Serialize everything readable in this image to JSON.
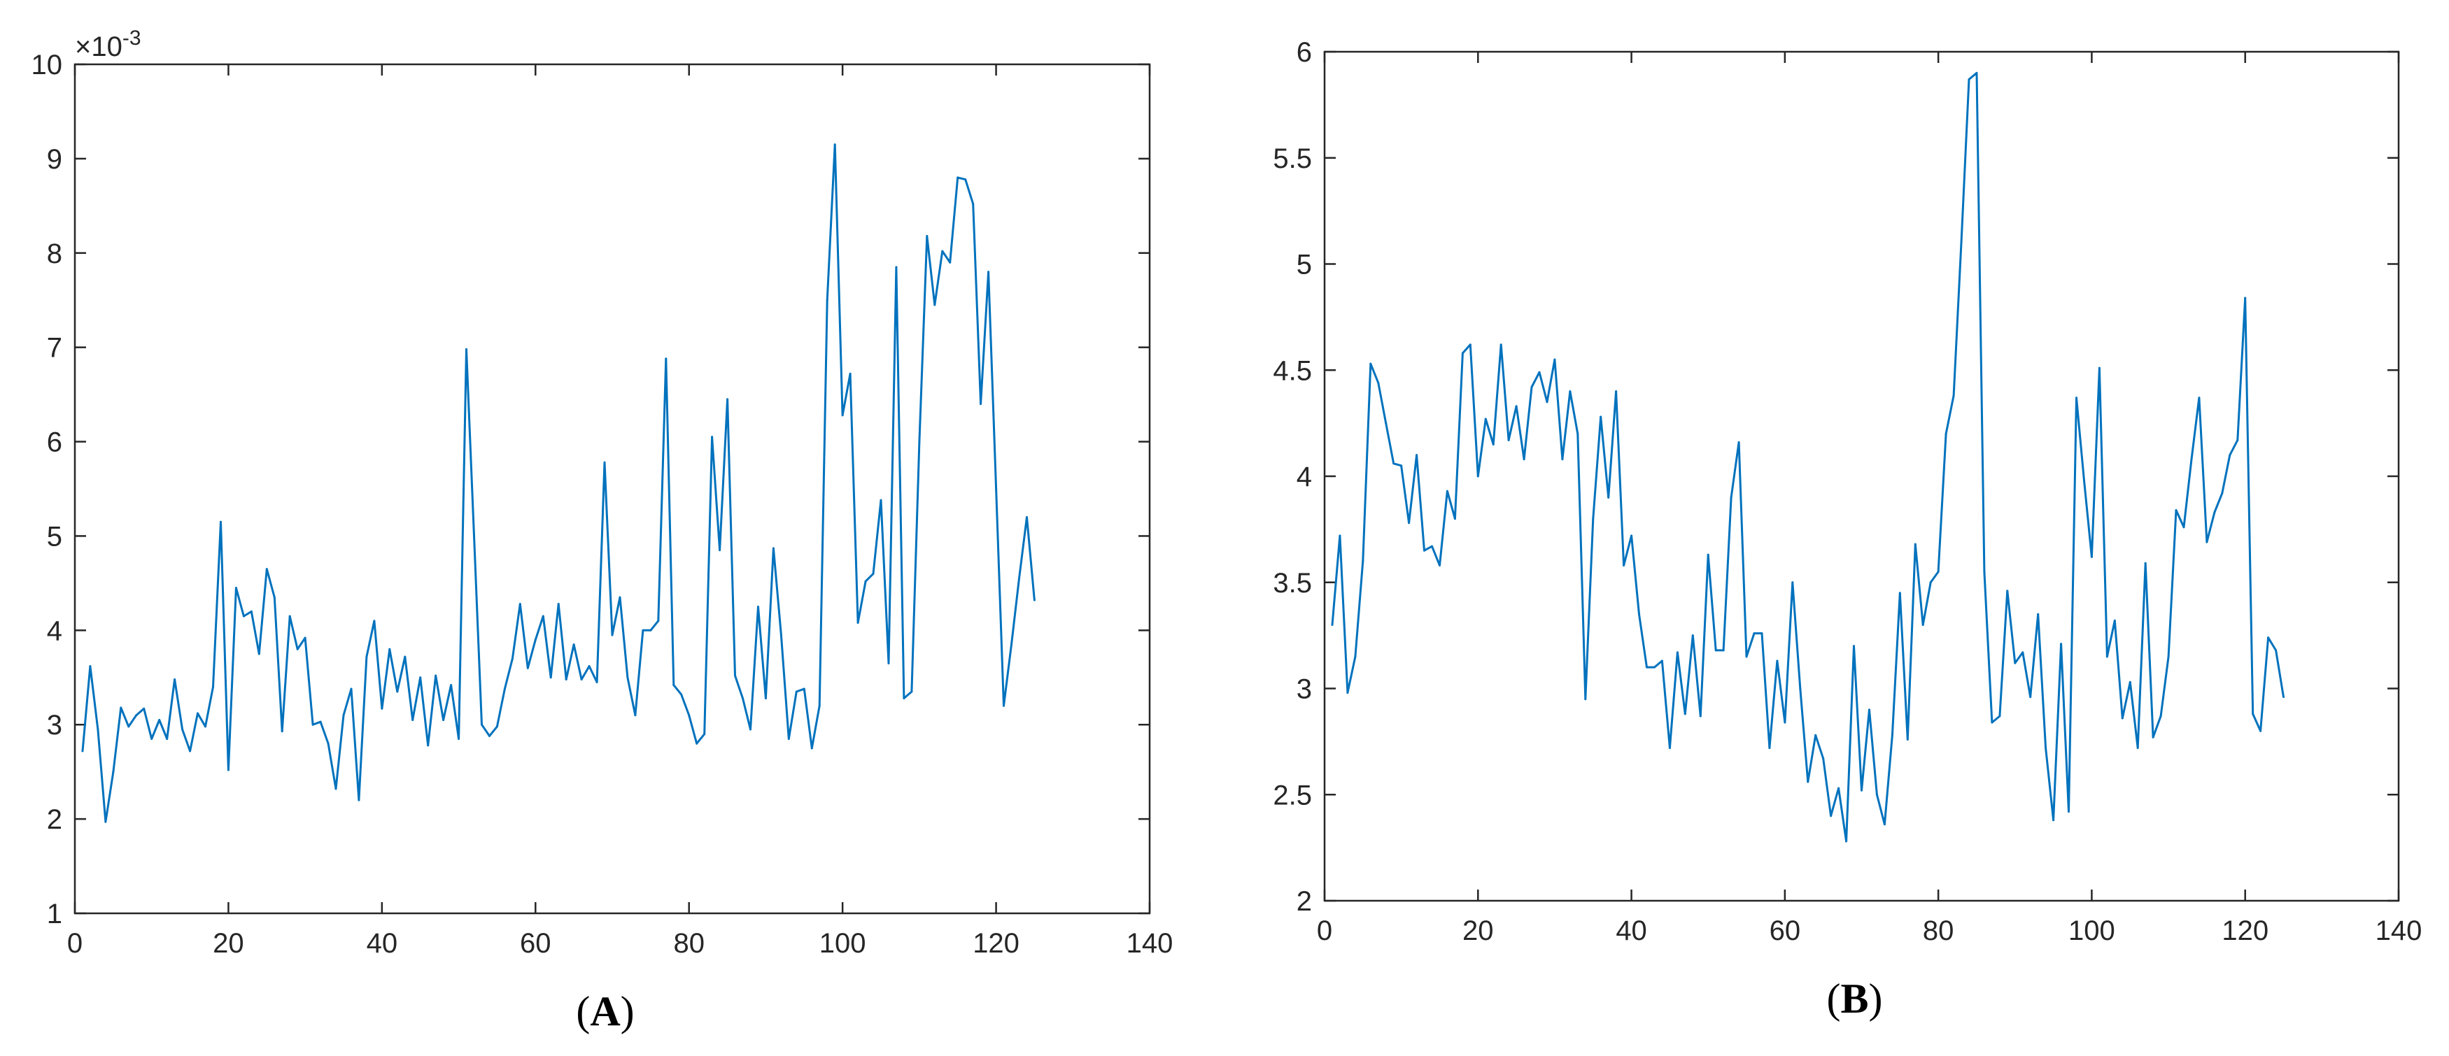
{
  "chart_data": [
    {
      "type": "line",
      "panel_label": "A",
      "exponent_label": {
        "base": "×10",
        "exp": "-3"
      },
      "xlim": [
        0,
        140
      ],
      "ylim": [
        1,
        10
      ],
      "xticks": [
        0,
        20,
        40,
        60,
        80,
        100,
        120,
        140
      ],
      "yticks": [
        1,
        2,
        3,
        4,
        5,
        6,
        7,
        8,
        9,
        10
      ],
      "grid": false,
      "color": "#0072BD",
      "series": [
        {
          "x": [
            1,
            2,
            3,
            4,
            5,
            6,
            7,
            8,
            9,
            10,
            11,
            12,
            13,
            14,
            15,
            16,
            17,
            18,
            19,
            20,
            21,
            22,
            23,
            24,
            25,
            26,
            27,
            28,
            29,
            30,
            31,
            32,
            33,
            34,
            35,
            36,
            37,
            38,
            39,
            40,
            41,
            42,
            43,
            44,
            45,
            46,
            47,
            48,
            49,
            50,
            51,
            52,
            53,
            54,
            55,
            56,
            57,
            58,
            59,
            60,
            61,
            62,
            63,
            64,
            65,
            66,
            67,
            68,
            69,
            70,
            71,
            72,
            73,
            74,
            75,
            76,
            77,
            78,
            79,
            80,
            81,
            82,
            83,
            84,
            85,
            86,
            87,
            88,
            89,
            90,
            91,
            92,
            93,
            94,
            95,
            96,
            97,
            98,
            99,
            100,
            101,
            102,
            103,
            104,
            105,
            106,
            107,
            108,
            109,
            110,
            111,
            112,
            113,
            114,
            115,
            116,
            117,
            118,
            119,
            120,
            121,
            122,
            123,
            124,
            125
          ],
          "values": [
            2.72,
            3.62,
            2.95,
            1.97,
            2.5,
            3.18,
            2.98,
            3.1,
            3.17,
            2.85,
            3.05,
            2.85,
            3.48,
            2.95,
            2.72,
            3.12,
            2.98,
            3.4,
            5.15,
            2.52,
            4.45,
            4.15,
            4.2,
            3.75,
            4.65,
            4.35,
            2.93,
            4.15,
            3.8,
            3.92,
            3.0,
            3.03,
            2.8,
            2.32,
            3.1,
            3.38,
            2.2,
            3.72,
            4.1,
            3.17,
            3.8,
            3.35,
            3.72,
            3.05,
            3.5,
            2.78,
            3.52,
            3.05,
            3.42,
            2.85,
            6.98,
            5.0,
            3.0,
            2.88,
            2.98,
            3.38,
            3.7,
            4.28,
            3.6,
            3.9,
            4.15,
            3.5,
            4.28,
            3.48,
            3.85,
            3.48,
            3.62,
            3.45,
            5.78,
            3.95,
            4.35,
            3.5,
            3.1,
            4.0,
            4.0,
            4.1,
            6.88,
            3.42,
            3.32,
            3.1,
            2.8,
            2.9,
            6.05,
            4.85,
            6.45,
            3.52,
            3.28,
            2.95,
            4.25,
            3.28,
            4.87,
            3.95,
            2.85,
            3.35,
            3.38,
            2.75,
            3.2,
            7.5,
            9.15,
            6.28,
            6.72,
            4.08,
            4.52,
            4.6,
            5.38,
            3.65,
            7.85,
            3.28,
            3.35,
            6.0,
            8.18,
            7.45,
            8.02,
            7.9,
            8.8,
            8.78,
            8.52,
            6.4,
            7.8,
            5.5,
            3.2,
            3.85,
            4.55,
            5.2,
            4.32
          ]
        }
      ]
    },
    {
      "type": "line",
      "panel_label": "B",
      "xlim": [
        0,
        140
      ],
      "ylim": [
        2,
        6
      ],
      "xticks": [
        0,
        20,
        40,
        60,
        80,
        100,
        120,
        140
      ],
      "yticks": [
        2,
        2.5,
        3,
        3.5,
        4,
        4.5,
        5,
        5.5,
        6
      ],
      "ytick_labels": [
        "2",
        "2.5",
        "3",
        "3.5",
        "4",
        "4.5",
        "5",
        "5.5",
        "6"
      ],
      "grid": false,
      "color": "#0072BD",
      "series": [
        {
          "x": [
            1,
            2,
            3,
            4,
            5,
            6,
            7,
            8,
            9,
            10,
            11,
            12,
            13,
            14,
            15,
            16,
            17,
            18,
            19,
            20,
            21,
            22,
            23,
            24,
            25,
            26,
            27,
            28,
            29,
            30,
            31,
            32,
            33,
            34,
            35,
            36,
            37,
            38,
            39,
            40,
            41,
            42,
            43,
            44,
            45,
            46,
            47,
            48,
            49,
            50,
            51,
            52,
            53,
            54,
            55,
            56,
            57,
            58,
            59,
            60,
            61,
            62,
            63,
            64,
            65,
            66,
            67,
            68,
            69,
            70,
            71,
            72,
            73,
            74,
            75,
            76,
            77,
            78,
            79,
            80,
            81,
            82,
            83,
            84,
            85,
            86,
            87,
            88,
            89,
            90,
            91,
            92,
            93,
            94,
            95,
            96,
            97,
            98,
            99,
            100,
            101,
            102,
            103,
            104,
            105,
            106,
            107,
            108,
            109,
            110,
            111,
            112,
            113,
            114,
            115,
            116,
            117,
            118,
            119,
            120,
            121,
            122,
            123,
            124,
            125
          ],
          "values": [
            3.3,
            3.72,
            2.98,
            3.15,
            3.6,
            4.53,
            4.44,
            4.25,
            4.06,
            4.05,
            3.78,
            4.1,
            3.65,
            3.67,
            3.58,
            3.93,
            3.8,
            4.58,
            4.62,
            4.0,
            4.27,
            4.15,
            4.62,
            4.17,
            4.33,
            4.08,
            4.42,
            4.49,
            4.35,
            4.55,
            4.08,
            4.4,
            4.2,
            2.95,
            3.8,
            4.28,
            3.9,
            4.4,
            3.58,
            3.72,
            3.35,
            3.1,
            3.1,
            3.13,
            2.72,
            3.17,
            2.88,
            3.25,
            2.87,
            3.63,
            3.18,
            3.18,
            3.9,
            4.16,
            3.15,
            3.26,
            3.26,
            2.72,
            3.13,
            2.84,
            3.5,
            3.0,
            2.56,
            2.78,
            2.67,
            2.4,
            2.53,
            2.28,
            3.2,
            2.52,
            2.9,
            2.5,
            2.36,
            2.78,
            3.45,
            2.76,
            3.68,
            3.3,
            3.5,
            3.55,
            4.2,
            4.38,
            5.1,
            5.87,
            5.9,
            3.55,
            2.84,
            2.87,
            3.46,
            3.12,
            3.17,
            2.96,
            3.35,
            2.72,
            2.38,
            3.21,
            2.42,
            4.37,
            3.98,
            3.62,
            4.51,
            3.15,
            3.32,
            2.86,
            3.03,
            2.72,
            3.59,
            2.77,
            2.87,
            3.15,
            3.84,
            3.76,
            4.08,
            4.37,
            3.69,
            3.83,
            3.92,
            4.1,
            4.17,
            4.84,
            2.88,
            2.8,
            3.24,
            3.18,
            2.96
          ]
        }
      ]
    }
  ]
}
